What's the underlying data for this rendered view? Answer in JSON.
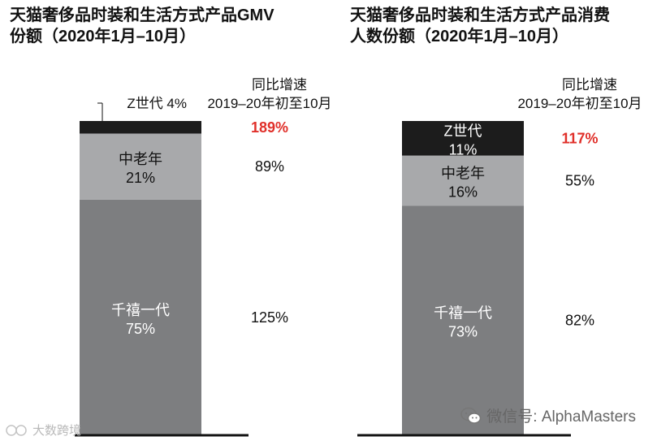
{
  "chart_data": [
    {
      "type": "bar",
      "stacked": true,
      "title": "天猫奢侈品时装和生活方式产品GMV份额（2020年1月–10月）",
      "title_lines": [
        "天猫奢侈品时装和生活方式产品GMV",
        "份额（2020年1月–10月）"
      ],
      "growth_header": [
        "同比增速",
        "2019–20年初至10月"
      ],
      "ylim": [
        0,
        100
      ],
      "segments": [
        {
          "name": "千禧一代",
          "value": 75,
          "label": "75%",
          "color": "#7d7e80",
          "text_color": "#ffffff",
          "growth": "125%",
          "highlight": false,
          "callout": false
        },
        {
          "name": "中老年",
          "value": 21,
          "label": "21%",
          "color": "#a8a9ab",
          "text_color": "#111111",
          "growth": "89%",
          "highlight": false,
          "callout": false
        },
        {
          "name": "Z世代",
          "value": 4,
          "label": "4%",
          "color": "#1c1c1c",
          "text_color": "#ffffff",
          "growth": "189%",
          "highlight": true,
          "callout": true
        }
      ]
    },
    {
      "type": "bar",
      "stacked": true,
      "title": "天猫奢侈品时装和生活方式产品消费人数份额（2020年1月–10月）",
      "title_lines": [
        "天猫奢侈品时装和生活方式产品消费",
        "人数份额（2020年1月–10月）"
      ],
      "growth_header": [
        "同比增速",
        "2019–20年初至10月"
      ],
      "ylim": [
        0,
        100
      ],
      "segments": [
        {
          "name": "千禧一代",
          "value": 73,
          "label": "73%",
          "color": "#7d7e80",
          "text_color": "#ffffff",
          "growth": "82%",
          "highlight": false,
          "callout": false
        },
        {
          "name": "中老年",
          "value": 16,
          "label": "16%",
          "color": "#a8a9ab",
          "text_color": "#111111",
          "growth": "55%",
          "highlight": false,
          "callout": false
        },
        {
          "name": "Z世代",
          "value": 11,
          "label": "11%",
          "color": "#1c1c1c",
          "text_color": "#ffffff",
          "growth": "117%",
          "highlight": true,
          "callout": false
        }
      ]
    }
  ],
  "watermark": {
    "right_text": "微信号: AlphaMasters",
    "left_text": "大数跨境"
  }
}
